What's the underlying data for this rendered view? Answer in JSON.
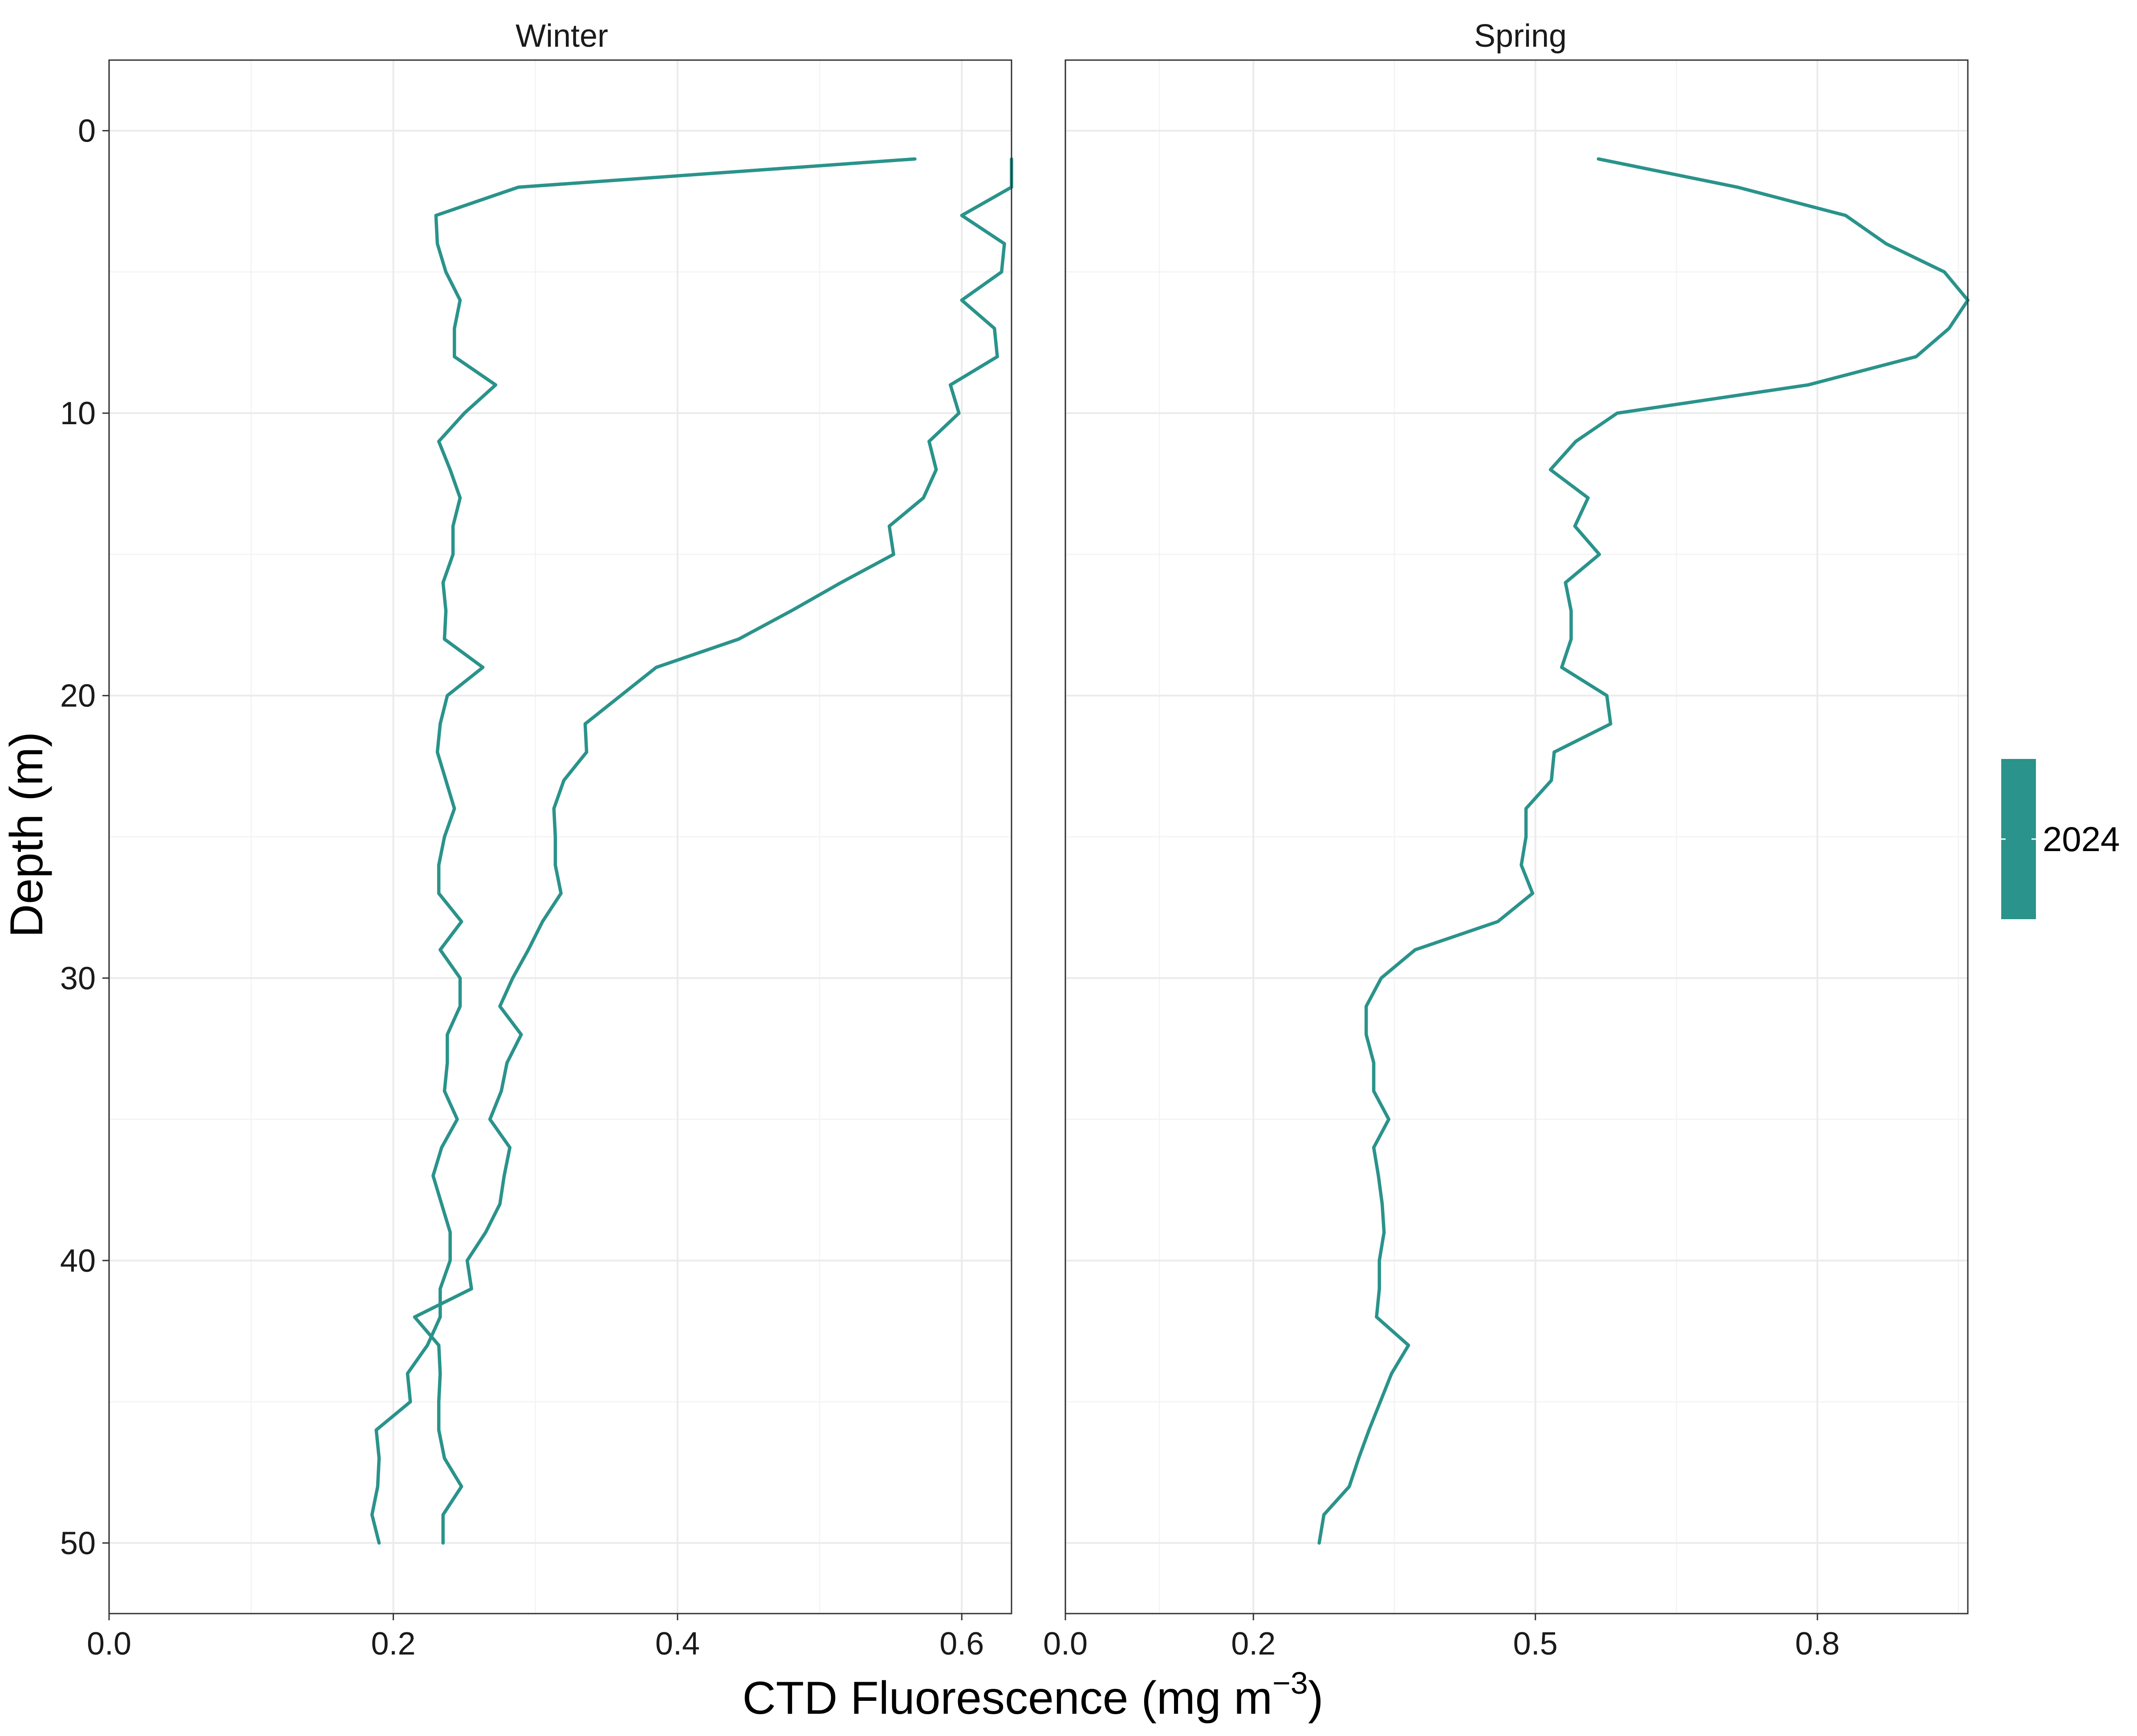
{
  "chart_data": {
    "type": "line",
    "ylabel": "Depth (m)",
    "xlabel_main": "CTD Fluorescence (mg m",
    "xlabel_sup": "−3",
    "xlabel_end": ")",
    "y_reversed": true,
    "ylim": [
      -2.5,
      52.5
    ],
    "y_ticks": [
      0,
      10,
      20,
      30,
      40,
      50
    ],
    "legend": {
      "label": "2024",
      "color": "#2a938b",
      "placement": "right"
    },
    "line_color": "#2a938b",
    "grid": true,
    "panels": [
      {
        "name": "Winter",
        "xlim": [
          0,
          0.635
        ],
        "x_ticks": [
          0.0,
          0.2,
          0.4,
          0.6
        ],
        "x_tick_labels": [
          "0.0",
          "0.2",
          "0.4",
          "0.6"
        ],
        "series": [
          {
            "depth": [
              1,
              2,
              3,
              4,
              5,
              6,
              7,
              8,
              9,
              10,
              11,
              12,
              13,
              14,
              15,
              16,
              17,
              18,
              19,
              20,
              21,
              22,
              23,
              24,
              25,
              26,
              27,
              28,
              29,
              30,
              31,
              32,
              33,
              34,
              35,
              36,
              37,
              38,
              39,
              40,
              41,
              42,
              43,
              44,
              45,
              46,
              47,
              48,
              49,
              50
            ],
            "values": [
              0.567,
              0.288,
              0.23,
              0.231,
              0.237,
              0.247,
              0.243,
              0.243,
              0.272,
              0.25,
              0.232,
              0.24,
              0.247,
              0.242,
              0.242,
              0.235,
              0.237,
              0.236,
              0.263,
              0.238,
              0.233,
              0.231,
              0.237,
              0.243,
              0.236,
              0.232,
              0.232,
              0.248,
              0.233,
              0.247,
              0.247,
              0.238,
              0.238,
              0.236,
              0.245,
              0.234,
              0.228,
              0.234,
              0.24,
              0.24,
              0.233,
              0.233,
              0.224,
              0.21,
              0.212,
              0.188,
              0.19,
              0.189,
              0.185,
              0.19
            ]
          },
          {
            "depth": [
              1,
              2,
              3,
              4,
              5,
              6,
              7,
              8,
              9,
              10,
              11,
              12,
              13,
              14,
              15,
              16,
              17,
              18,
              19,
              20,
              21,
              22,
              23,
              24,
              25,
              26,
              27,
              28,
              29,
              30,
              31,
              32,
              33,
              34,
              35,
              36,
              37,
              38,
              39,
              40,
              41,
              42,
              43,
              44,
              45,
              46,
              47,
              48,
              49,
              50
            ],
            "values": [
              0.635,
              0.635,
              0.6,
              0.63,
              0.628,
              0.6,
              0.623,
              0.625,
              0.592,
              0.598,
              0.577,
              0.582,
              0.573,
              0.549,
              0.552,
              0.515,
              0.48,
              0.443,
              0.385,
              0.36,
              0.335,
              0.336,
              0.32,
              0.313,
              0.314,
              0.314,
              0.318,
              0.305,
              0.295,
              0.284,
              0.275,
              0.29,
              0.28,
              0.276,
              0.268,
              0.282,
              0.278,
              0.275,
              0.265,
              0.252,
              0.255,
              0.215,
              0.232,
              0.233,
              0.232,
              0.232,
              0.236,
              0.248,
              0.235,
              0.235
            ]
          }
        ]
      },
      {
        "name": "Spring",
        "xlim": [
          0,
          0.96
        ],
        "x_ticks": [
          0.0,
          0.2,
          0.5,
          0.8
        ],
        "x_tick_labels": [
          "0.0",
          "0.2",
          "0.5",
          "0.8"
        ],
        "series": [
          {
            "depth": [
              1,
              2,
              3,
              4,
              5,
              6,
              7,
              8,
              9,
              10,
              11,
              12,
              13,
              14,
              15,
              16,
              17,
              18,
              19,
              20,
              21,
              22,
              23,
              24,
              25,
              26,
              27,
              28,
              29,
              30,
              31,
              32,
              33,
              34,
              35,
              36,
              37,
              38,
              39,
              40,
              41,
              42,
              43,
              44,
              45,
              46,
              47,
              48,
              49,
              50
            ],
            "values": [
              0.567,
              0.715,
              0.83,
              0.873,
              0.935,
              0.96,
              0.94,
              0.905,
              0.79,
              0.587,
              0.543,
              0.516,
              0.556,
              0.542,
              0.568,
              0.532,
              0.538,
              0.538,
              0.528,
              0.576,
              0.58,
              0.52,
              0.517,
              0.49,
              0.49,
              0.485,
              0.497,
              0.46,
              0.372,
              0.336,
              0.32,
              0.32,
              0.328,
              0.328,
              0.344,
              0.328,
              0.333,
              0.337,
              0.339,
              0.334,
              0.334,
              0.331,
              0.365,
              0.347,
              0.335,
              0.323,
              0.312,
              0.302,
              0.275,
              0.27
            ]
          }
        ]
      }
    ]
  }
}
